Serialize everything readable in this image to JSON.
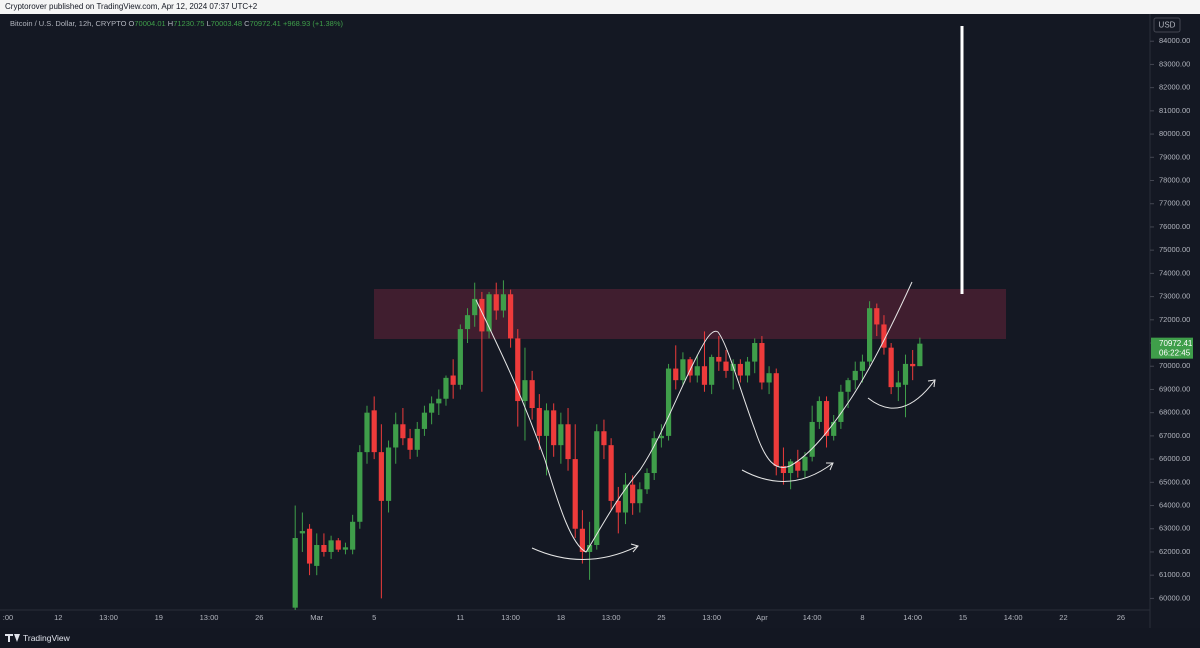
{
  "chart_data": {
    "type": "candlestick",
    "publisher": "Cryptorover published on TradingView.com, Apr 12, 2024 07:37 UTC+2",
    "symbol": "Bitcoin / U.S. Dollar, 12h, CRYPTO",
    "ohlc_letters": [
      "O",
      "H",
      "L",
      "C"
    ],
    "change": "+968.93 (+1.38%)",
    "currency": "USD",
    "countdown": "06:22:45",
    "brand": "TradingView",
    "up_color": "#3f9e4a",
    "down_color": "#ee3b3b",
    "grid": false,
    "ylim": [
      59500,
      85000
    ],
    "yticks": [
      {
        "value": 60000,
        "label": "60000.00"
      },
      {
        "value": 61000,
        "label": "61000.00"
      },
      {
        "value": 62000,
        "label": "62000.00"
      },
      {
        "value": 63000,
        "label": "63000.00"
      },
      {
        "value": 64000,
        "label": "64000.00"
      },
      {
        "value": 65000,
        "label": "65000.00"
      },
      {
        "value": 66000,
        "label": "66000.00"
      },
      {
        "value": 67000,
        "label": "67000.00"
      },
      {
        "value": 68000,
        "label": "68000.00"
      },
      {
        "value": 69000,
        "label": "69000.00"
      },
      {
        "value": 70000,
        "label": "70000.00"
      },
      {
        "value": 71000,
        "label": "71000.00"
      },
      {
        "value": 72000,
        "label": "72000.00"
      },
      {
        "value": 73000,
        "label": "73000.00"
      },
      {
        "value": 74000,
        "label": "74000.00"
      },
      {
        "value": 75000,
        "label": "75000.00"
      },
      {
        "value": 76000,
        "label": "76000.00"
      },
      {
        "value": 77000,
        "label": "77000.00"
      },
      {
        "value": 78000,
        "label": "78000.00"
      },
      {
        "value": 79000,
        "label": "79000.00"
      },
      {
        "value": 80000,
        "label": "80000.00"
      },
      {
        "value": 81000,
        "label": "81000.00"
      },
      {
        "value": 82000,
        "label": "82000.00"
      },
      {
        "value": 83000,
        "label": "83000.00"
      },
      {
        "value": 84000,
        "label": "84000.00"
      }
    ],
    "categories": [
      ":00",
      null,
      null,
      null,
      null,
      null,
      null,
      "12",
      null,
      null,
      null,
      null,
      null,
      null,
      "13:00",
      null,
      null,
      null,
      null,
      null,
      null,
      "19",
      null,
      null,
      null,
      null,
      null,
      null,
      "13:00",
      null,
      null,
      null,
      null,
      null,
      null,
      "26",
      null,
      null,
      null,
      null,
      null,
      null,
      null,
      "Mar",
      null,
      null,
      null,
      null,
      null,
      null,
      null,
      "5",
      null,
      null,
      null,
      null,
      null,
      null,
      null,
      null,
      null,
      null,
      null,
      "11",
      null,
      null,
      null,
      null,
      null,
      null,
      "13:00",
      null,
      null,
      null,
      null,
      null,
      null,
      "18",
      null,
      null,
      null,
      null,
      null,
      null,
      "13:00",
      null,
      null,
      null,
      null,
      null,
      null,
      "25",
      null,
      null,
      null,
      null,
      null,
      null,
      "13:00",
      null,
      null,
      null,
      null,
      null,
      null,
      "Apr",
      null,
      null,
      null,
      null,
      null,
      null,
      "14:00",
      null,
      null,
      null,
      null,
      null,
      null,
      "8",
      null,
      null,
      null,
      null,
      null,
      null,
      "14:00",
      null,
      null,
      null,
      null,
      null,
      null,
      "15",
      null,
      null,
      null,
      null,
      null,
      null,
      "14:00",
      null,
      null,
      null,
      null,
      null,
      null,
      "22",
      null,
      null,
      null,
      null,
      null,
      null,
      null,
      "26"
    ],
    "open": [
      null,
      null,
      null,
      null,
      null,
      null,
      null,
      null,
      null,
      null,
      null,
      null,
      null,
      null,
      null,
      null,
      null,
      null,
      null,
      null,
      null,
      null,
      null,
      null,
      null,
      null,
      null,
      null,
      null,
      null,
      null,
      null,
      null,
      null,
      null,
      null,
      null,
      null,
      null,
      null,
      59600,
      62800,
      63000,
      61400,
      62300,
      62000,
      62500,
      62100,
      62100,
      63300,
      66300,
      68100,
      66300,
      64200,
      66500,
      67500,
      66900,
      66400,
      67300,
      68000,
      68400,
      68600,
      69600,
      69200,
      71600,
      72200,
      72900,
      71500,
      73100,
      72400,
      73100,
      71200,
      68500,
      69400,
      68200,
      67000,
      68100,
      66600,
      67500,
      66000,
      63000,
      62000,
      62300,
      67200,
      66600,
      64200,
      63700,
      64900,
      64100,
      64700,
      65400,
      66900,
      67000,
      69900,
      69400,
      70300,
      69600,
      70000,
      69200,
      70400,
      70200,
      69800,
      70100,
      69600,
      70200,
      71000,
      69300,
      69700,
      65700,
      65400,
      65900,
      65500,
      66100,
      67600,
      68500,
      67000,
      67600,
      68900,
      69400,
      69800,
      70200,
      72500,
      71800,
      70800,
      69100,
      69200,
      70100,
      70004.01,
      null,
      null,
      null,
      null,
      null,
      null,
      null,
      null,
      null,
      null,
      null,
      null,
      null,
      null,
      null,
      null,
      null,
      null,
      null,
      null,
      null,
      null,
      null,
      null,
      null,
      null,
      null,
      null
    ],
    "high": [
      null,
      null,
      null,
      null,
      null,
      null,
      null,
      null,
      null,
      null,
      null,
      null,
      null,
      null,
      null,
      null,
      null,
      null,
      null,
      null,
      null,
      null,
      null,
      null,
      null,
      null,
      null,
      null,
      null,
      null,
      null,
      null,
      null,
      null,
      null,
      null,
      null,
      null,
      null,
      null,
      64000,
      63700,
      63200,
      62800,
      62800,
      62700,
      62600,
      62400,
      63600,
      66600,
      68300,
      68700,
      67500,
      66800,
      68000,
      68200,
      67300,
      67600,
      68300,
      68700,
      69000,
      69600,
      70300,
      71800,
      72500,
      73600,
      73200,
      73200,
      73600,
      73700,
      73300,
      71600,
      70800,
      69800,
      68800,
      68400,
      68400,
      68000,
      68200,
      67500,
      63800,
      63300,
      67500,
      67700,
      66900,
      64800,
      65400,
      65300,
      65000,
      65600,
      67200,
      67500,
      70100,
      70900,
      70600,
      70400,
      70500,
      71500,
      70500,
      71300,
      70700,
      70300,
      70300,
      70400,
      71200,
      71300,
      70000,
      69900,
      66500,
      66000,
      66400,
      66300,
      68300,
      68700,
      68700,
      67900,
      69200,
      69500,
      70200,
      70500,
      72800,
      72700,
      72200,
      71000,
      69800,
      70500,
      70700,
      71230.75,
      null,
      null,
      null,
      null,
      null,
      null,
      null,
      null,
      null,
      null,
      null,
      null,
      null,
      null,
      null,
      null,
      null,
      null,
      null,
      null,
      null,
      null,
      null,
      null,
      null,
      null,
      null,
      null
    ],
    "low": [
      null,
      null,
      null,
      null,
      null,
      null,
      null,
      null,
      null,
      null,
      null,
      null,
      null,
      null,
      null,
      null,
      null,
      null,
      null,
      null,
      null,
      null,
      null,
      null,
      null,
      null,
      null,
      null,
      null,
      null,
      null,
      null,
      null,
      null,
      null,
      null,
      null,
      null,
      null,
      null,
      59500,
      62000,
      61000,
      61000,
      61800,
      61700,
      62000,
      61900,
      61900,
      63000,
      65800,
      66000,
      60000,
      63700,
      65800,
      66600,
      66000,
      66100,
      67000,
      67500,
      67900,
      68300,
      68600,
      69000,
      71000,
      71700,
      68900,
      71200,
      72000,
      72100,
      70800,
      67400,
      66800,
      67700,
      66400,
      65300,
      66100,
      65800,
      65500,
      62600,
      61500,
      60800,
      62100,
      66000,
      63800,
      62800,
      63200,
      63600,
      63700,
      64500,
      65100,
      66500,
      66800,
      69000,
      69200,
      69300,
      69300,
      68900,
      68800,
      69800,
      69500,
      69000,
      69300,
      69300,
      69700,
      69000,
      68800,
      65300,
      64900,
      64700,
      65200,
      65200,
      65900,
      67300,
      66500,
      66800,
      67300,
      68200,
      69000,
      69300,
      70000,
      71300,
      70500,
      68800,
      68500,
      67800,
      69400,
      70003.48,
      null,
      null,
      null,
      null,
      null,
      null,
      null,
      null,
      null,
      null,
      null,
      null,
      null,
      null,
      null,
      null,
      null,
      null,
      null,
      null,
      null,
      null,
      null,
      null,
      null,
      null,
      null,
      null
    ],
    "close": [
      null,
      null,
      null,
      null,
      null,
      null,
      null,
      null,
      null,
      null,
      null,
      null,
      null,
      null,
      null,
      null,
      null,
      null,
      null,
      null,
      null,
      null,
      null,
      null,
      null,
      null,
      null,
      null,
      null,
      null,
      null,
      null,
      null,
      null,
      null,
      null,
      null,
      null,
      null,
      null,
      62600,
      62900,
      61500,
      62300,
      62000,
      62500,
      62100,
      62200,
      63300,
      66300,
      68000,
      66300,
      64200,
      66500,
      67500,
      66900,
      66400,
      67300,
      68000,
      68400,
      68600,
      69500,
      69200,
      71600,
      72200,
      72900,
      71500,
      73100,
      72400,
      73100,
      71200,
      68500,
      69400,
      68200,
      67000,
      68100,
      66600,
      67500,
      66000,
      63000,
      62000,
      62300,
      67200,
      66600,
      64200,
      63700,
      64900,
      64100,
      64700,
      65400,
      66900,
      67000,
      69900,
      69400,
      70300,
      69600,
      70000,
      69200,
      70400,
      70200,
      69800,
      70100,
      69600,
      70200,
      71000,
      69300,
      69700,
      65700,
      65400,
      65900,
      65500,
      66100,
      67600,
      68500,
      67000,
      67600,
      68900,
      69400,
      69800,
      70200,
      72500,
      71800,
      70800,
      69100,
      69300,
      70100,
      70000,
      70972.41,
      null,
      null,
      null,
      null,
      null,
      null,
      null,
      null,
      null,
      null,
      null,
      null,
      null,
      null,
      null,
      null,
      null,
      null,
      null,
      null,
      null,
      null,
      null,
      null,
      null,
      null,
      null,
      null
    ]
  }
}
